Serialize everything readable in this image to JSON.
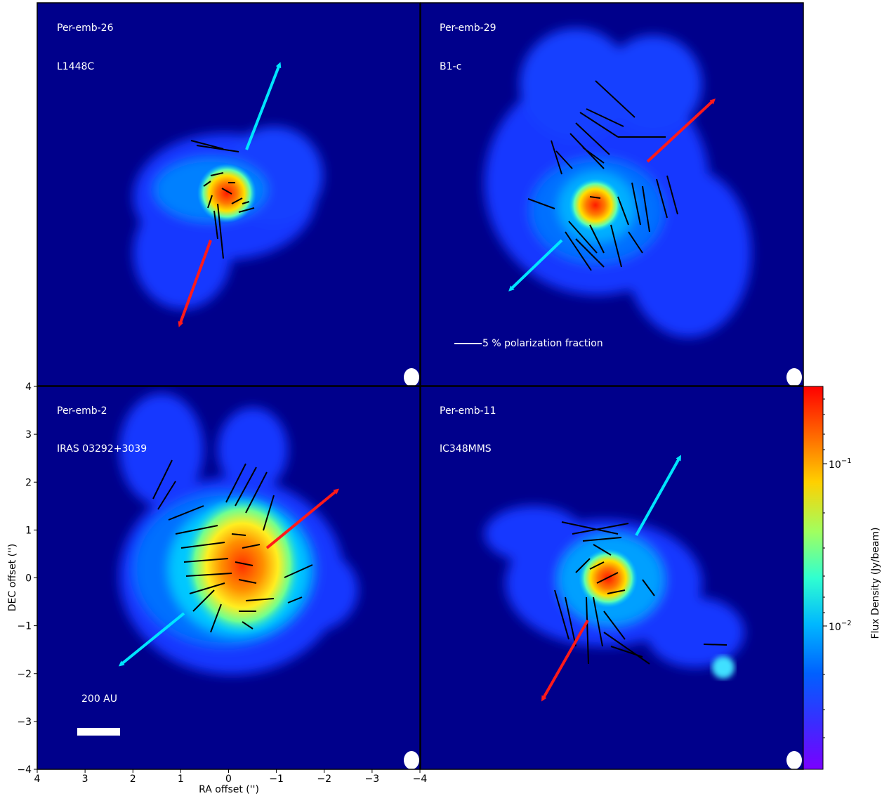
{
  "panels": [
    {
      "id": "tl",
      "name": "Per-emb-26",
      "alt": "L1448C"
    },
    {
      "id": "tr",
      "name": "Per-emb-29",
      "alt": "B1-c"
    },
    {
      "id": "bl",
      "name": "Per-emb-2",
      "alt": "IRAS 03292+3039"
    },
    {
      "id": "br",
      "name": "Per-emb-11",
      "alt": "IC348MMS"
    }
  ],
  "polarization_scale_label": "5 % polarization fraction",
  "scale_bar_label": "200 AU",
  "axes": {
    "xlabel": "RA offset ('')",
    "ylabel": "DEC offset ('')",
    "x_ticks": [
      "4",
      "3",
      "2",
      "1",
      "0",
      "−1",
      "−2",
      "−3",
      "−4"
    ],
    "y_ticks": [
      "4",
      "3",
      "2",
      "1",
      "0",
      "−1",
      "−2",
      "−3",
      "−4"
    ]
  },
  "colorbar": {
    "label": "Flux Density (Jy/beam)",
    "ticks": [
      "10",
      "10"
    ],
    "exps": [
      "−1",
      "−2"
    ]
  },
  "colors": {
    "background": "#00008b",
    "blue_outflow": "#00e5ff",
    "red_outflow": "#ff1a1a",
    "vectors": "#000000"
  }
}
